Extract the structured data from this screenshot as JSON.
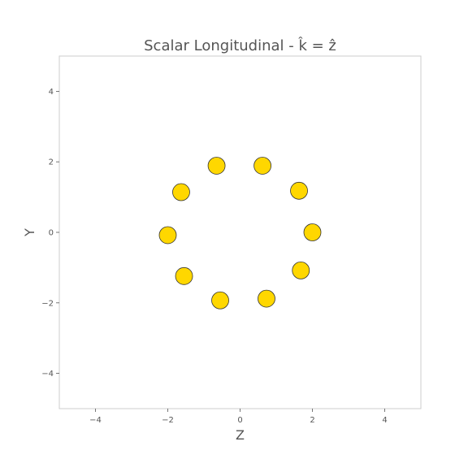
{
  "chart_data": {
    "type": "scatter",
    "title": "Scalar  Longitudinal - k̂ = ẑ",
    "xlabel": "Z",
    "ylabel": "Y",
    "xlim": [
      -5,
      5
    ],
    "ylim": [
      -5,
      5
    ],
    "grid": false,
    "x_ticks": [
      -4,
      -2,
      0,
      2,
      4
    ],
    "y_ticks": [
      -4,
      -2,
      0,
      2,
      4
    ],
    "x_tick_labels": [
      "−4",
      "−2",
      "0",
      "2",
      "4"
    ],
    "y_tick_labels": [
      "−4",
      "−2",
      "0",
      "2",
      "4"
    ],
    "marker_color": "#FFD700",
    "marker_edge_color": "#333333",
    "points": [
      {
        "x": 2.0,
        "y": 0.0
      },
      {
        "x": 1.68,
        "y": -1.08
      },
      {
        "x": 0.73,
        "y": -1.88
      },
      {
        "x": -0.55,
        "y": -1.93
      },
      {
        "x": -1.55,
        "y": -1.24
      },
      {
        "x": -2.0,
        "y": -0.08
      },
      {
        "x": -1.63,
        "y": 1.14
      },
      {
        "x": -0.65,
        "y": 1.89
      },
      {
        "x": 0.62,
        "y": 1.89
      },
      {
        "x": 1.63,
        "y": 1.18
      }
    ]
  }
}
